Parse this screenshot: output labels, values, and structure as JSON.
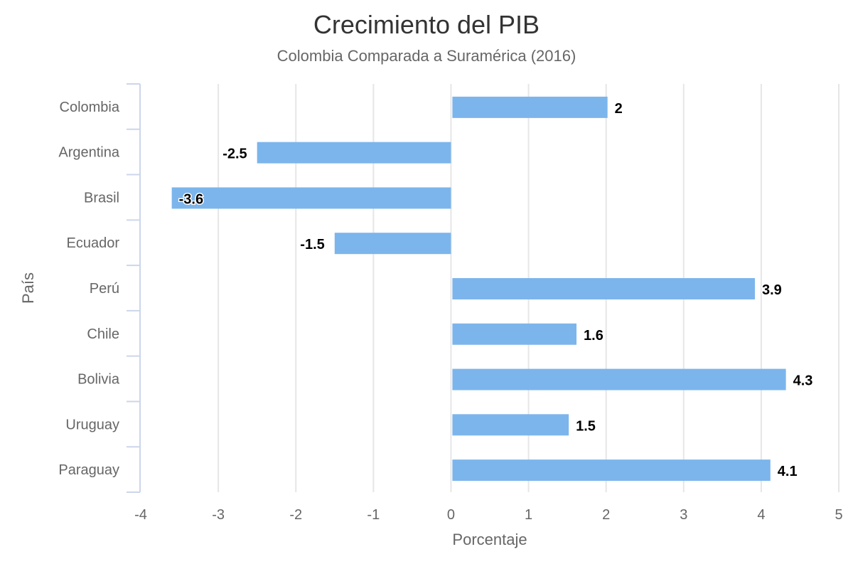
{
  "chart_data": {
    "type": "bar",
    "orientation": "horizontal",
    "title": "Crecimiento del PIB",
    "subtitle": "Colombia Comparada a Suramérica (2016)",
    "xlabel": "Porcentaje",
    "ylabel": "País",
    "xlim": [
      -4,
      5
    ],
    "xticks": [
      "-4",
      "-3",
      "-2",
      "-1",
      "0",
      "1",
      "2",
      "3",
      "4",
      "5"
    ],
    "grid": "vertical",
    "legend": "none",
    "bar_color": "#7cb5ec",
    "categories": [
      "Colombia",
      "Argentina",
      "Brasil",
      "Ecuador",
      "Perú",
      "Chile",
      "Bolivia",
      "Uruguay",
      "Paraguay"
    ],
    "values": [
      2,
      -2.5,
      -3.6,
      -1.5,
      3.9,
      1.6,
      4.3,
      1.5,
      4.1
    ],
    "data_labels": [
      "2",
      "-2.5",
      "-3.6",
      "-1.5",
      "3.9",
      "1.6",
      "4.3",
      "1.5",
      "4.1"
    ]
  }
}
